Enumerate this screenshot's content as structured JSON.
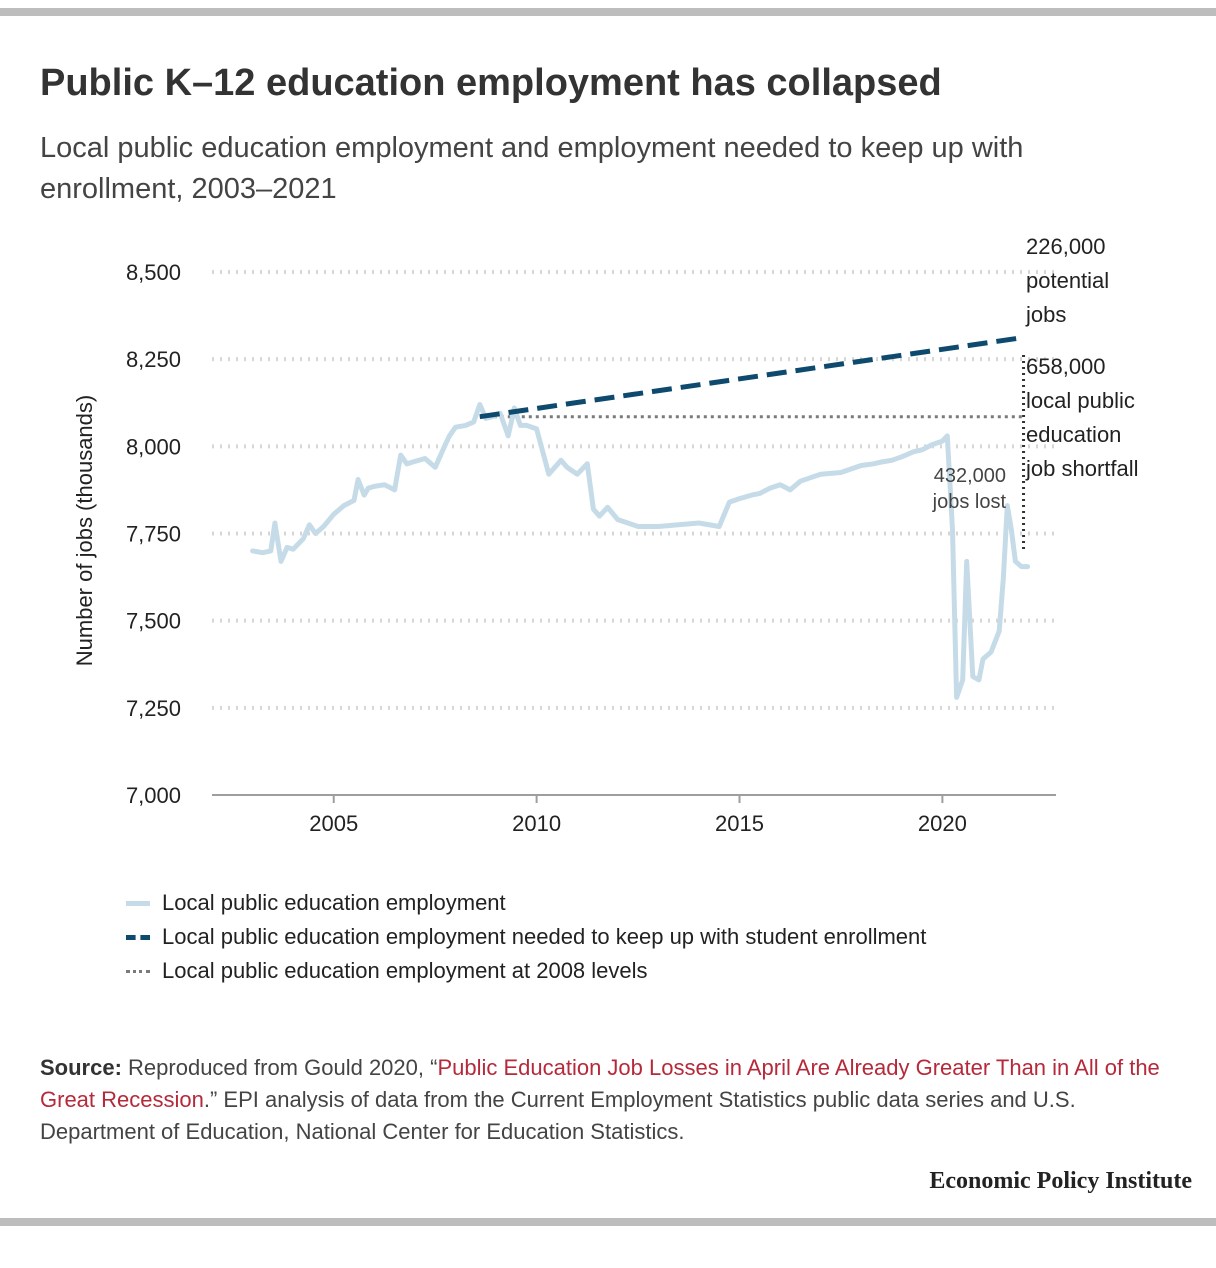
{
  "title": "Public K–12 education employment has collapsed",
  "subtitle": "Local public education employment and employment needed to keep up with enrollment, 2003–2021",
  "colors": {
    "actual": "#c6dbe8",
    "needed": "#0d4a6e",
    "level_2008": "#7a7a7a",
    "grid": "#d6d6d6",
    "link": "#b6293a"
  },
  "chart_data": {
    "type": "line",
    "ylabel": "Number of jobs (thousands)",
    "xlabel": "",
    "xlim": [
      2002.0,
      2022.8
    ],
    "ylim": [
      7000,
      8500
    ],
    "x_ticks": [
      2005,
      2010,
      2015,
      2020
    ],
    "y_ticks": [
      7000,
      7250,
      7500,
      7750,
      8000,
      8250,
      8500
    ],
    "y_tick_labels": [
      "7,000",
      "7,250",
      "7,500",
      "7,750",
      "8,000",
      "8,250",
      "8,500"
    ],
    "grid": "horizontal dotted",
    "series": [
      {
        "name": "Local public education employment",
        "style": "solid",
        "x": [
          2003.0,
          2003.25,
          2003.45,
          2003.55,
          2003.7,
          2003.85,
          2004.0,
          2004.25,
          2004.4,
          2004.55,
          2004.75,
          2005.0,
          2005.25,
          2005.5,
          2005.6,
          2005.75,
          2005.85,
          2006.0,
          2006.25,
          2006.5,
          2006.65,
          2006.8,
          2006.95,
          2007.25,
          2007.5,
          2007.75,
          2007.85,
          2008.0,
          2008.25,
          2008.45,
          2008.6,
          2008.75,
          2008.9,
          2009.1,
          2009.3,
          2009.45,
          2009.6,
          2009.75,
          2010.0,
          2010.3,
          2010.6,
          2010.75,
          2011.0,
          2011.25,
          2011.4,
          2011.55,
          2011.75,
          2012.0,
          2012.5,
          2013.0,
          2013.5,
          2014.0,
          2014.5,
          2014.75,
          2015.0,
          2015.3,
          2015.5,
          2015.75,
          2016.0,
          2016.25,
          2016.5,
          2016.75,
          2017.0,
          2017.5,
          2018.0,
          2018.3,
          2018.5,
          2018.75,
          2019.0,
          2019.3,
          2019.5,
          2019.75,
          2020.0,
          2020.12,
          2020.25,
          2020.35,
          2020.5,
          2020.6,
          2020.75,
          2020.9,
          2021.0,
          2021.2,
          2021.4,
          2021.5,
          2021.6,
          2021.7,
          2021.8,
          2021.95,
          2022.1
        ],
        "y": [
          7700,
          7695,
          7700,
          7780,
          7670,
          7710,
          7705,
          7735,
          7775,
          7750,
          7770,
          7805,
          7830,
          7845,
          7905,
          7860,
          7880,
          7885,
          7890,
          7875,
          7975,
          7950,
          7955,
          7965,
          7940,
          8005,
          8030,
          8055,
          8060,
          8070,
          8120,
          8080,
          8085,
          8095,
          8030,
          8110,
          8060,
          8060,
          8050,
          7920,
          7960,
          7940,
          7920,
          7950,
          7820,
          7800,
          7825,
          7790,
          7770,
          7770,
          7775,
          7780,
          7770,
          7840,
          7850,
          7860,
          7865,
          7880,
          7890,
          7875,
          7900,
          7910,
          7920,
          7925,
          7945,
          7950,
          7955,
          7960,
          7970,
          7985,
          7990,
          8005,
          8015,
          8030,
          7760,
          7280,
          7330,
          7670,
          7340,
          7330,
          7390,
          7410,
          7470,
          7620,
          7830,
          7760,
          7670,
          7655,
          7655
        ]
      },
      {
        "name": "Local public education employment needed to keep up with student enrollment",
        "style": "dashed",
        "x": [
          2008.6,
          2022.0
        ],
        "y": [
          8085,
          8312
        ]
      },
      {
        "name": "Local public education employment at 2008 levels",
        "style": "dotted",
        "x": [
          2008.6,
          2022.0
        ],
        "y": [
          8085,
          8085
        ]
      }
    ],
    "annotations": {
      "potential": "226,000 potential jobs",
      "shortfall": "658,000 local public education job shortfall",
      "lost": "432,000 jobs lost"
    }
  },
  "legend": [
    {
      "label": "Local public education employment",
      "style": "solid",
      "color": "#c6dbe8"
    },
    {
      "label": "Local public education employment needed to keep up with student enrollment",
      "style": "dashed",
      "color": "#0d4a6e"
    },
    {
      "label": "Local public education employment at 2008 levels",
      "style": "dotted",
      "color": "#7a7a7a"
    }
  ],
  "source": {
    "prefix": "Source:",
    "text_before": " Reproduced from Gould 2020, “",
    "link_text": "Public Education Job Losses in April Are Already Greater Than in All of the Great Recession",
    "text_after": ".” EPI analysis of data from the Current Employment Statistics public data series and U.S. Department of Education, National Center for Education Statistics."
  },
  "branding": "Economic Policy Institute"
}
